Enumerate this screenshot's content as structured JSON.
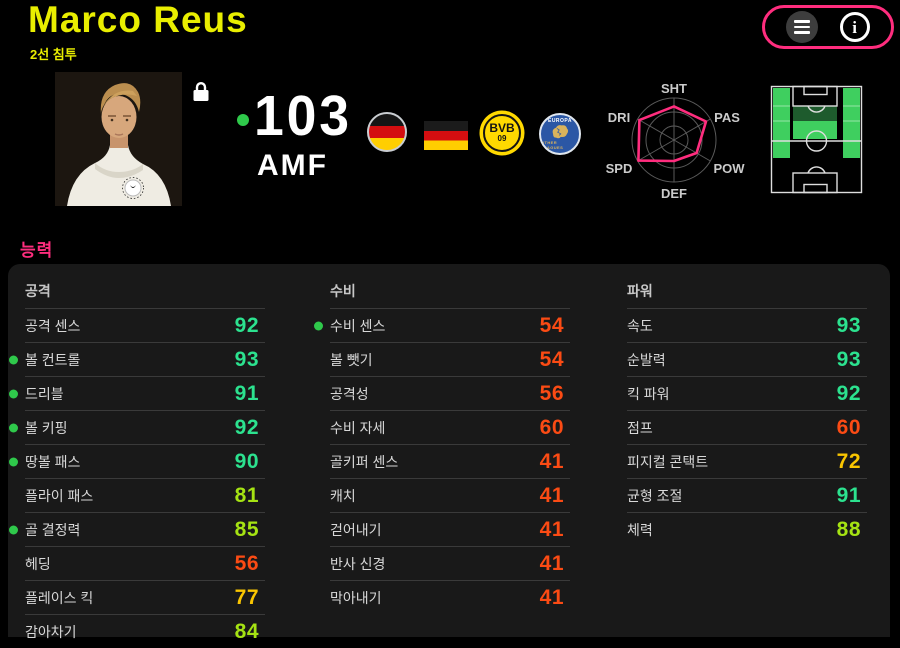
{
  "header": {
    "player_name": "Marco Reus",
    "playing_style": "2선 침투"
  },
  "summary": {
    "overall_rating": "103",
    "position": "AMF",
    "club_badge": {
      "line1": "BVB",
      "line2": "09"
    },
    "league_badge": {
      "top_text": "EUROPA",
      "bottom_text": "OTHER LEAGUES"
    }
  },
  "icons": {
    "menu": "hamburger",
    "info": "circled-i",
    "lock": "padlock",
    "upgrade_dot": "green-dot"
  },
  "radar": {
    "labels": [
      "SHT",
      "PAS",
      "POW",
      "DEF",
      "SPD",
      "DRI"
    ],
    "values": [
      80,
      88,
      62,
      50,
      98,
      95
    ]
  },
  "ability": {
    "section_title": "능력",
    "columns": [
      {
        "title": "공격",
        "rows": [
          {
            "label": "공격 센스",
            "value": 92,
            "dot": false
          },
          {
            "label": "볼 컨트롤",
            "value": 93,
            "dot": true
          },
          {
            "label": "드리블",
            "value": 91,
            "dot": true
          },
          {
            "label": "볼 키핑",
            "value": 92,
            "dot": true
          },
          {
            "label": "땅볼 패스",
            "value": 90,
            "dot": true
          },
          {
            "label": "플라이 패스",
            "value": 81,
            "dot": false
          },
          {
            "label": "골 결정력",
            "value": 85,
            "dot": true
          },
          {
            "label": "헤딩",
            "value": 56,
            "dot": false
          },
          {
            "label": "플레이스 킥",
            "value": 77,
            "dot": false
          },
          {
            "label": "감아차기",
            "value": 84,
            "dot": false
          }
        ]
      },
      {
        "title": "수비",
        "rows": [
          {
            "label": "수비 센스",
            "value": 54,
            "dot": true
          },
          {
            "label": "볼 뺏기",
            "value": 54,
            "dot": false
          },
          {
            "label": "공격성",
            "value": 56,
            "dot": false
          },
          {
            "label": "수비 자세",
            "value": 60,
            "dot": false
          },
          {
            "label": "골키퍼 센스",
            "value": 41,
            "dot": false
          },
          {
            "label": "캐치",
            "value": 41,
            "dot": false
          },
          {
            "label": "걷어내기",
            "value": 41,
            "dot": false
          },
          {
            "label": "반사 신경",
            "value": 41,
            "dot": false
          },
          {
            "label": "막아내기",
            "value": 41,
            "dot": false
          }
        ]
      },
      {
        "title": "파워",
        "rows": [
          {
            "label": "속도",
            "value": 93,
            "dot": false
          },
          {
            "label": "순발력",
            "value": 93,
            "dot": false
          },
          {
            "label": "킥 파워",
            "value": 92,
            "dot": false
          },
          {
            "label": "점프",
            "value": 60,
            "dot": false
          },
          {
            "label": "피지컬 콘택트",
            "value": 72,
            "dot": false
          },
          {
            "label": "균형 조절",
            "value": 91,
            "dot": false
          },
          {
            "label": "체력",
            "value": 88,
            "dot": false
          }
        ]
      }
    ]
  },
  "colors": {
    "accent_pink": "#ff2d7e",
    "accent_yellow": "#e9ee00",
    "value_green": "#2ce28f",
    "value_lime": "#a5e313",
    "value_yellow": "#f9c501",
    "value_red": "#fb4b14",
    "upgrade_dot_green": "#2fc94b",
    "panel_bg": "#191919"
  }
}
